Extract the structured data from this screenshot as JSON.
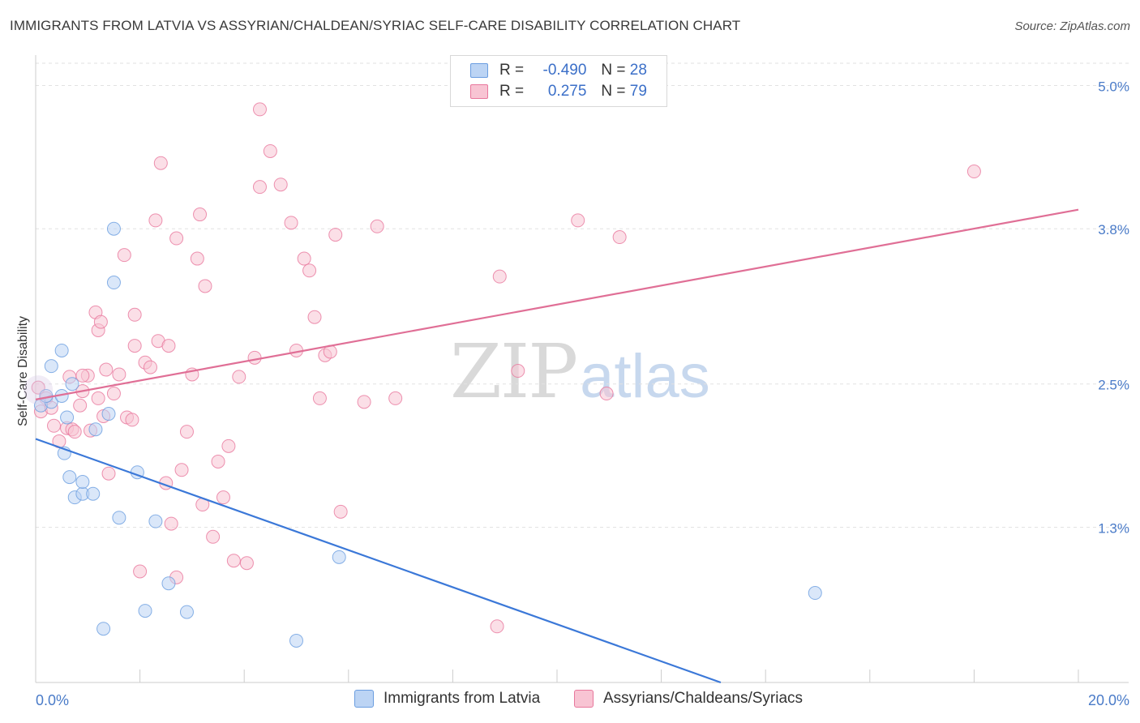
{
  "header": {
    "title": "IMMIGRANTS FROM LATVIA VS ASSYRIAN/CHALDEAN/SYRIAC SELF-CARE DISABILITY CORRELATION CHART",
    "source": "Source: ZipAtlas.com"
  },
  "watermark": {
    "zip": "ZIP",
    "atlas": "atlas"
  },
  "legend": {
    "r_label": "R =",
    "n_label": "N =",
    "rows": [
      {
        "r": "-0.490",
        "n": "28",
        "color": "#a9c6ee"
      },
      {
        "r": "0.275",
        "n": "79",
        "color": "#f5b6c8"
      }
    ]
  },
  "chart_data": {
    "type": "scatter",
    "title": "IMMIGRANTS FROM LATVIA VS ASSYRIAN/CHALDEAN/SYRIAC SELF-CARE DISABILITY CORRELATION CHART",
    "ylabel": "Self-Care Disability",
    "xlim": [
      0,
      20
    ],
    "ylim": [
      0,
      5.2
    ],
    "x_tick_labels": [
      "0.0%",
      "20.0%"
    ],
    "y_ticks": [
      1.3,
      2.5,
      3.8,
      5.0
    ],
    "y_tick_labels": [
      "1.3%",
      "2.5%",
      "3.8%",
      "5.0%"
    ],
    "grid": true,
    "legend_position": "top-center",
    "series": [
      {
        "name": "Immigrants from Latvia",
        "color": "#6a9de0",
        "fill": "#bcd4f4",
        "trend": {
          "x": [
            0,
            13.14
          ],
          "y": [
            2.04,
            0
          ]
        },
        "points": [
          [
            0.1,
            2.32
          ],
          [
            0.3,
            2.35
          ],
          [
            0.5,
            2.4
          ],
          [
            0.7,
            2.5
          ],
          [
            0.3,
            2.65
          ],
          [
            0.5,
            2.78
          ],
          [
            0.6,
            2.22
          ],
          [
            0.55,
            1.92
          ],
          [
            0.65,
            1.72
          ],
          [
            0.75,
            1.55
          ],
          [
            0.9,
            1.58
          ],
          [
            0.9,
            1.68
          ],
          [
            1.1,
            1.58
          ],
          [
            1.15,
            2.12
          ],
          [
            1.4,
            2.25
          ],
          [
            1.5,
            3.35
          ],
          [
            1.5,
            3.8
          ],
          [
            1.6,
            1.38
          ],
          [
            1.95,
            1.76
          ],
          [
            2.3,
            1.35
          ],
          [
            2.55,
            0.83
          ],
          [
            2.1,
            0.6
          ],
          [
            2.9,
            0.59
          ],
          [
            1.3,
            0.45
          ],
          [
            5.0,
            0.35
          ],
          [
            5.82,
            1.05
          ],
          [
            14.95,
            0.75
          ],
          [
            0.2,
            2.4
          ]
        ]
      },
      {
        "name": "Assyrians/Chaldeans/Syriacs",
        "color": "#e8779c",
        "fill": "#f8c4d3",
        "trend": {
          "x": [
            0,
            20
          ],
          "y": [
            2.37,
            3.96
          ]
        },
        "points": [
          [
            0.05,
            2.47
          ],
          [
            0.1,
            2.27
          ],
          [
            0.2,
            2.38
          ],
          [
            0.3,
            2.3
          ],
          [
            0.35,
            2.15
          ],
          [
            0.45,
            2.02
          ],
          [
            0.6,
            2.13
          ],
          [
            0.7,
            2.12
          ],
          [
            0.65,
            2.56
          ],
          [
            0.75,
            2.1
          ],
          [
            0.85,
            2.32
          ],
          [
            0.9,
            2.44
          ],
          [
            1.0,
            2.57
          ],
          [
            1.05,
            2.11
          ],
          [
            1.15,
            3.1
          ],
          [
            1.2,
            2.95
          ],
          [
            1.2,
            2.38
          ],
          [
            1.3,
            2.23
          ],
          [
            1.4,
            1.75
          ],
          [
            1.5,
            2.42
          ],
          [
            1.6,
            2.58
          ],
          [
            1.7,
            3.58
          ],
          [
            1.75,
            2.22
          ],
          [
            1.9,
            3.08
          ],
          [
            1.9,
            2.82
          ],
          [
            2.1,
            2.68
          ],
          [
            2.2,
            2.64
          ],
          [
            2.3,
            3.87
          ],
          [
            2.35,
            2.86
          ],
          [
            2.4,
            4.35
          ],
          [
            2.5,
            1.67
          ],
          [
            2.6,
            1.33
          ],
          [
            2.7,
            0.88
          ],
          [
            2.7,
            3.72
          ],
          [
            2.8,
            1.78
          ],
          [
            2.9,
            2.1
          ],
          [
            3.0,
            2.58
          ],
          [
            3.1,
            3.55
          ],
          [
            3.15,
            3.92
          ],
          [
            3.25,
            3.32
          ],
          [
            3.4,
            1.22
          ],
          [
            3.5,
            1.85
          ],
          [
            3.6,
            1.55
          ],
          [
            3.7,
            1.98
          ],
          [
            3.8,
            1.02
          ],
          [
            3.9,
            2.56
          ],
          [
            4.05,
            1.0
          ],
          [
            4.2,
            2.72
          ],
          [
            4.3,
            4.8
          ],
          [
            4.3,
            4.15
          ],
          [
            4.5,
            4.45
          ],
          [
            4.7,
            4.17
          ],
          [
            4.9,
            3.85
          ],
          [
            5.0,
            2.78
          ],
          [
            5.15,
            3.55
          ],
          [
            5.25,
            3.45
          ],
          [
            5.35,
            3.06
          ],
          [
            5.45,
            2.38
          ],
          [
            5.55,
            2.74
          ],
          [
            5.65,
            2.77
          ],
          [
            5.75,
            3.75
          ],
          [
            5.85,
            1.43
          ],
          [
            6.3,
            2.35
          ],
          [
            6.55,
            3.82
          ],
          [
            6.9,
            2.38
          ],
          [
            8.85,
            0.47
          ],
          [
            8.9,
            3.4
          ],
          [
            9.25,
            2.61
          ],
          [
            10.4,
            3.87
          ],
          [
            10.95,
            2.42
          ],
          [
            11.2,
            3.73
          ],
          [
            18.0,
            4.28
          ],
          [
            2.0,
            0.93
          ],
          [
            0.9,
            2.57
          ],
          [
            1.25,
            3.02
          ],
          [
            2.55,
            2.82
          ],
          [
            1.35,
            2.62
          ],
          [
            1.85,
            2.2
          ],
          [
            3.2,
            1.49
          ]
        ]
      }
    ]
  }
}
